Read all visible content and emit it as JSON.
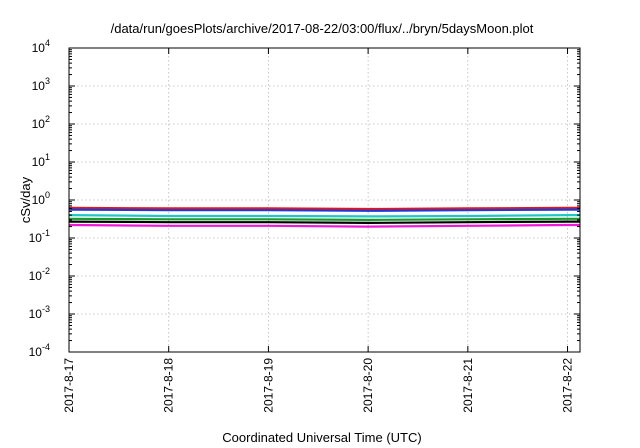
{
  "chart_data": {
    "type": "line",
    "title": "/data/run/goesPlots/archive/2017-08-22/03:00/flux/../bryn/5daysMoon.plot",
    "xlabel": "Coordinated Universal Time (UTC)",
    "ylabel": "cSv/day",
    "yscale": "log",
    "ylim": [
      0.0001,
      10000
    ],
    "xlim": [
      "2017-08-17T00:00",
      "2017-08-22T03:00"
    ],
    "y_ticks": [
      {
        "value": 0.0001,
        "base": "10",
        "exp": "-4"
      },
      {
        "value": 0.001,
        "base": "10",
        "exp": "-3"
      },
      {
        "value": 0.01,
        "base": "10",
        "exp": "-2"
      },
      {
        "value": 0.1,
        "base": "10",
        "exp": "-1"
      },
      {
        "value": 1,
        "base": "10",
        "exp": "0"
      },
      {
        "value": 10,
        "base": "10",
        "exp": "1"
      },
      {
        "value": 100,
        "base": "10",
        "exp": "2"
      },
      {
        "value": 1000,
        "base": "10",
        "exp": "3"
      },
      {
        "value": 10000,
        "base": "10",
        "exp": "4"
      }
    ],
    "x_ticks": [
      "2017-8-17",
      "2017-8-18",
      "2017-8-19",
      "2017-8-20",
      "2017-8-21",
      "2017-8-22"
    ],
    "grid": true,
    "legend": "none",
    "series": [
      {
        "color": "#e8141c",
        "x": [
          "2017-08-17T00:00",
          "2017-08-18T00:00",
          "2017-08-19T00:00",
          "2017-08-20T00:00",
          "2017-08-21T00:00",
          "2017-08-22T00:00",
          "2017-08-22T03:00"
        ],
        "values": [
          0.62,
          0.6,
          0.6,
          0.58,
          0.6,
          0.62,
          0.62
        ]
      },
      {
        "color": "#1a3bd8",
        "x": [
          "2017-08-17T00:00",
          "2017-08-18T00:00",
          "2017-08-19T00:00",
          "2017-08-20T00:00",
          "2017-08-21T00:00",
          "2017-08-22T00:00",
          "2017-08-22T03:00"
        ],
        "values": [
          0.56,
          0.54,
          0.54,
          0.52,
          0.54,
          0.56,
          0.56
        ]
      },
      {
        "color": "#1ec8c8",
        "x": [
          "2017-08-17T00:00",
          "2017-08-18T00:00",
          "2017-08-19T00:00",
          "2017-08-20T00:00",
          "2017-08-21T00:00",
          "2017-08-22T00:00",
          "2017-08-22T03:00"
        ],
        "values": [
          0.4,
          0.38,
          0.38,
          0.37,
          0.38,
          0.4,
          0.4
        ]
      },
      {
        "color": "#1a9a2a",
        "x": [
          "2017-08-17T00:00",
          "2017-08-18T00:00",
          "2017-08-19T00:00",
          "2017-08-20T00:00",
          "2017-08-21T00:00",
          "2017-08-22T00:00",
          "2017-08-22T03:00"
        ],
        "values": [
          0.32,
          0.31,
          0.31,
          0.3,
          0.31,
          0.32,
          0.32
        ]
      },
      {
        "color": "#000000",
        "x": [
          "2017-08-17T00:00",
          "2017-08-18T00:00",
          "2017-08-19T00:00",
          "2017-08-20T00:00",
          "2017-08-21T00:00",
          "2017-08-22T00:00",
          "2017-08-22T03:00"
        ],
        "values": [
          0.27,
          0.26,
          0.26,
          0.25,
          0.26,
          0.27,
          0.27
        ]
      },
      {
        "color": "#f018d8",
        "x": [
          "2017-08-17T00:00",
          "2017-08-18T00:00",
          "2017-08-19T00:00",
          "2017-08-20T00:00",
          "2017-08-21T00:00",
          "2017-08-22T00:00",
          "2017-08-22T03:00"
        ],
        "values": [
          0.22,
          0.21,
          0.21,
          0.2,
          0.21,
          0.22,
          0.22
        ]
      }
    ]
  }
}
